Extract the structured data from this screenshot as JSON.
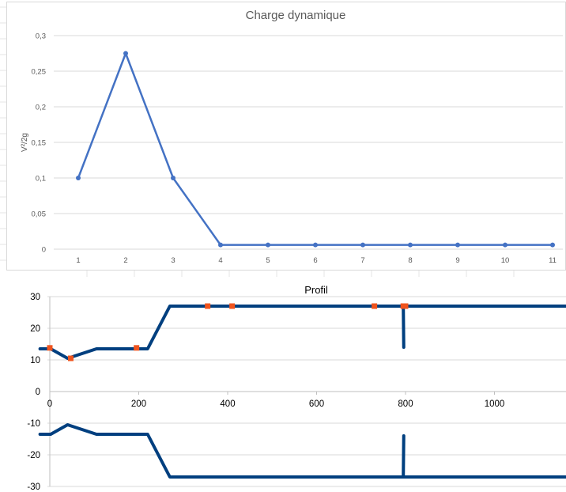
{
  "chart_data": [
    {
      "type": "line",
      "title": "Charge dynamique",
      "xlabel": "",
      "ylabel": "V²/2g",
      "categories": [
        "1",
        "2",
        "3",
        "4",
        "5",
        "6",
        "7",
        "8",
        "9",
        "10",
        "11"
      ],
      "series": [
        {
          "values": [
            0.1,
            0.275,
            0.1,
            0.006,
            0.006,
            0.006,
            0.006,
            0.006,
            0.006,
            0.006,
            0.006
          ]
        }
      ],
      "ylim": [
        0,
        0.3
      ],
      "yticks": [
        "0",
        "0,05",
        "0,1",
        "0,15",
        "0,2",
        "0,25",
        "0,3"
      ],
      "grid": true,
      "legend": "none"
    },
    {
      "type": "scatter",
      "title": "Profil",
      "xlabel": "",
      "ylabel": "",
      "xlim": [
        -25,
        1160
      ],
      "ylim": [
        -30,
        30
      ],
      "xticks": [
        "0",
        "200",
        "400",
        "600",
        "800",
        "1000"
      ],
      "yticks": [
        "-30",
        "-20",
        "-10",
        "0",
        "10",
        "20",
        "30"
      ],
      "grid": true,
      "legend": "none",
      "series": [
        {
          "style": "line",
          "x": [
            -22,
            2,
            40,
            105,
            220,
            270,
            795,
            796,
            795,
            1160
          ],
          "y": [
            13.5,
            13.5,
            10.5,
            13.5,
            13.5,
            27,
            27,
            14,
            27,
            27
          ]
        },
        {
          "style": "line",
          "x": [
            -22,
            2,
            40,
            105,
            220,
            270,
            795,
            796,
            795,
            1160
          ],
          "y": [
            -13.5,
            -13.5,
            -10.5,
            -13.5,
            -13.5,
            -27,
            -27,
            -14,
            -27,
            -27
          ]
        },
        {
          "style": "markers",
          "x": [
            0,
            47,
            195,
            355,
            410,
            730,
            795,
            800
          ],
          "y": [
            13.8,
            10.5,
            13.8,
            27,
            27,
            27,
            27,
            27
          ]
        }
      ]
    }
  ],
  "colors": {
    "line_chart_series": "#4472c4",
    "profile_line": "#003f7f",
    "profile_marker": "#f0541e",
    "gridline": "#d9d9d9",
    "sheet_gridline": "#e4e4e4"
  }
}
